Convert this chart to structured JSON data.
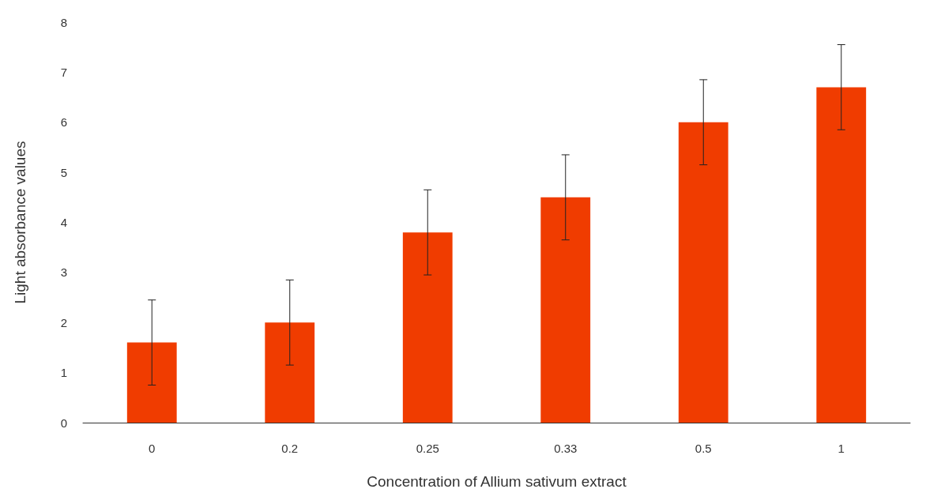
{
  "chart_data": {
    "type": "bar",
    "xlabel": "Concentration of Allium sativum extract",
    "ylabel": "Light absorbance values",
    "categories": [
      "0",
      "0.2",
      "0.25",
      "0.33",
      "0.5",
      "1"
    ],
    "values": [
      1.6,
      2.0,
      3.8,
      4.5,
      6.0,
      6.7
    ],
    "errors": [
      0.85,
      0.85,
      0.85,
      0.85,
      0.85,
      0.85
    ],
    "color": "#f03c00",
    "ylim": [
      0,
      8
    ],
    "yticks": [
      0,
      1,
      2,
      3,
      4,
      5,
      6,
      7,
      8
    ],
    "grid": false
  }
}
